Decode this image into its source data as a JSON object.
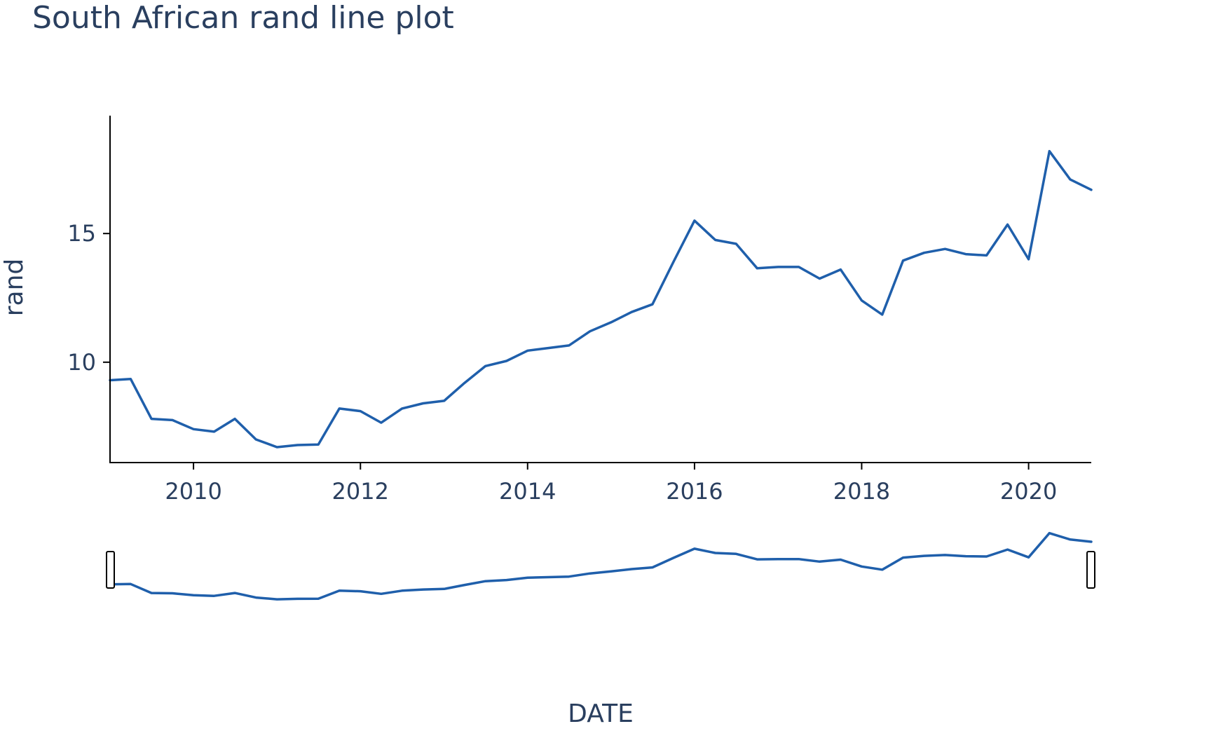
{
  "chart_data": {
    "type": "line",
    "title": "South African rand line plot",
    "xlabel": "DATE",
    "ylabel": "rand",
    "xlim": [
      "2009-01-01",
      "2020-10-01"
    ],
    "ylim": [
      6.1,
      18.9
    ],
    "x_ticks": [
      {
        "date": "2010-01-01",
        "label": "2010"
      },
      {
        "date": "2012-01-01",
        "label": "2012"
      },
      {
        "date": "2014-01-01",
        "label": "2014"
      },
      {
        "date": "2016-01-01",
        "label": "2016"
      },
      {
        "date": "2018-01-01",
        "label": "2018"
      },
      {
        "date": "2020-01-01",
        "label": "2020"
      }
    ],
    "y_ticks": [
      {
        "value": 10,
        "label": "10"
      },
      {
        "value": 15,
        "label": "15"
      }
    ],
    "grid": false,
    "legend": false,
    "range_slider": true,
    "line_color": "#1f5fab",
    "series": [
      {
        "x": [
          "2009-01-01",
          "2009-04-01",
          "2009-07-01",
          "2009-10-01",
          "2010-01-01",
          "2010-04-01",
          "2010-07-01",
          "2010-10-01",
          "2011-01-01",
          "2011-04-01",
          "2011-07-01",
          "2011-10-01",
          "2012-01-01",
          "2012-04-01",
          "2012-07-01",
          "2012-10-01",
          "2013-01-01",
          "2013-04-01",
          "2013-07-01",
          "2013-10-01",
          "2014-01-01",
          "2014-04-01",
          "2014-07-01",
          "2014-10-01",
          "2015-01-01",
          "2015-04-01",
          "2015-07-01",
          "2015-10-01",
          "2016-01-01",
          "2016-04-01",
          "2016-07-01",
          "2016-10-01",
          "2017-01-01",
          "2017-04-01",
          "2017-07-01",
          "2017-10-01",
          "2018-01-01",
          "2018-04-01",
          "2018-07-01",
          "2018-10-01",
          "2019-01-01",
          "2019-04-01",
          "2019-07-01",
          "2019-10-01",
          "2020-01-01",
          "2020-04-01",
          "2020-07-01",
          "2020-10-01"
        ],
        "y": [
          9.3,
          9.35,
          7.8,
          7.75,
          7.4,
          7.3,
          7.8,
          7.0,
          6.7,
          6.78,
          6.8,
          8.2,
          8.1,
          7.65,
          8.2,
          8.4,
          8.5,
          9.2,
          9.85,
          10.05,
          10.45,
          10.55,
          10.65,
          11.2,
          11.55,
          11.95,
          12.25,
          13.9,
          15.5,
          14.75,
          14.6,
          13.65,
          13.7,
          13.7,
          13.25,
          13.6,
          12.4,
          11.85,
          13.95,
          14.25,
          14.4,
          14.2,
          14.15,
          15.35,
          14.0,
          18.2,
          17.1,
          16.7
        ]
      }
    ]
  }
}
